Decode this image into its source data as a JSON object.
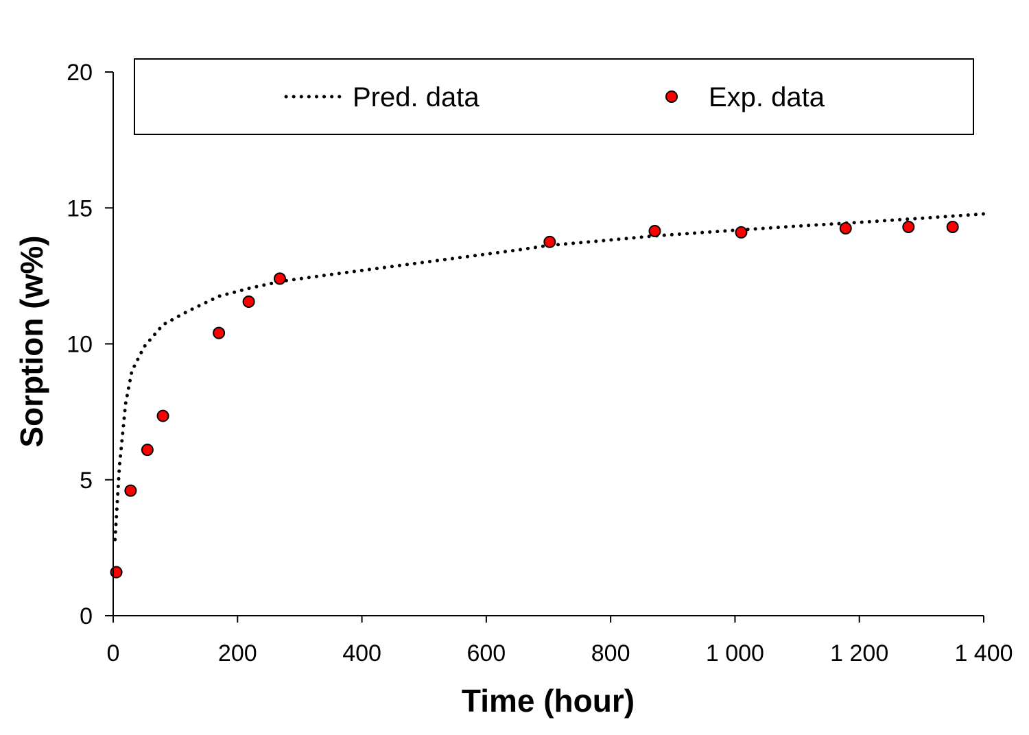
{
  "chart_data": {
    "type": "scatter",
    "xlabel": "Time (hour)",
    "ylabel": "Sorption (w%)",
    "xlim": [
      0,
      1400
    ],
    "ylim": [
      0,
      20
    ],
    "x_ticks": [
      0,
      200,
      400,
      600,
      800,
      1000,
      1200,
      1400
    ],
    "x_tick_labels": [
      "0",
      "200",
      "400",
      "600",
      "800",
      "1 000",
      "1 200",
      "1 400"
    ],
    "y_ticks": [
      0,
      5,
      10,
      15,
      20
    ],
    "y_tick_labels": [
      "0",
      "5",
      "10",
      "15",
      "20"
    ],
    "grid": false,
    "legend_position": "top",
    "series": [
      {
        "name": "Pred. data",
        "style": "dotted-line",
        "color": "#000000",
        "x": [
          3,
          10,
          20,
          30,
          50,
          80,
          120,
          170,
          220,
          270,
          350,
          450,
          550,
          650,
          700,
          800,
          870,
          1000,
          1100,
          1200,
          1300,
          1400
        ],
        "y": [
          2.8,
          5.5,
          7.8,
          9.0,
          9.9,
          10.7,
          11.2,
          11.75,
          12.05,
          12.3,
          12.55,
          12.85,
          13.15,
          13.45,
          13.62,
          13.82,
          13.97,
          14.18,
          14.33,
          14.47,
          14.62,
          14.78
        ]
      },
      {
        "name": "Exp. data",
        "style": "marker",
        "color": "#ff0000",
        "x": [
          5,
          28,
          55,
          80,
          170,
          218,
          268,
          702,
          871,
          1010,
          1178,
          1279,
          1350
        ],
        "y": [
          1.6,
          4.6,
          6.1,
          7.35,
          10.4,
          11.55,
          12.4,
          13.75,
          14.15,
          14.1,
          14.25,
          14.3,
          14.3
        ]
      }
    ]
  }
}
